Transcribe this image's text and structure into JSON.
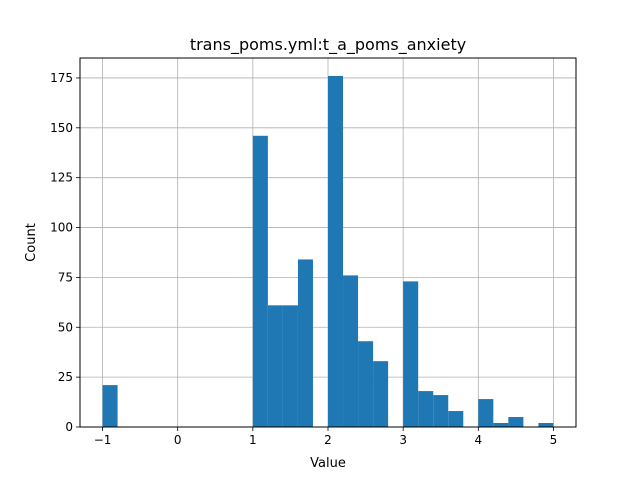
{
  "chart_data": {
    "type": "bar",
    "title": "trans_poms.yml:t_a_poms_anxiety",
    "xlabel": "Value",
    "ylabel": "Count",
    "xlim": [
      -1.3,
      5.3
    ],
    "ylim": [
      0,
      185
    ],
    "xticks": [
      -1,
      0,
      1,
      2,
      3,
      4,
      5
    ],
    "xtick_labels": [
      "−1",
      "0",
      "1",
      "2",
      "3",
      "4",
      "5"
    ],
    "yticks": [
      0,
      25,
      50,
      75,
      100,
      125,
      150,
      175
    ],
    "ytick_labels": [
      "0",
      "25",
      "50",
      "75",
      "100",
      "125",
      "150",
      "175"
    ],
    "grid": true,
    "bar_color": "#1f77b4",
    "bins": [
      {
        "x0": -1.0,
        "x1": -0.8,
        "count": 21
      },
      {
        "x0": 1.0,
        "x1": 1.2,
        "count": 146
      },
      {
        "x0": 1.2,
        "x1": 1.4,
        "count": 61
      },
      {
        "x0": 1.4,
        "x1": 1.6,
        "count": 61
      },
      {
        "x0": 1.6,
        "x1": 1.8,
        "count": 84
      },
      {
        "x0": 2.0,
        "x1": 2.2,
        "count": 176
      },
      {
        "x0": 2.2,
        "x1": 2.4,
        "count": 76
      },
      {
        "x0": 2.4,
        "x1": 2.6,
        "count": 43
      },
      {
        "x0": 2.6,
        "x1": 2.8,
        "count": 33
      },
      {
        "x0": 3.0,
        "x1": 3.2,
        "count": 73
      },
      {
        "x0": 3.2,
        "x1": 3.4,
        "count": 18
      },
      {
        "x0": 3.4,
        "x1": 3.6,
        "count": 16
      },
      {
        "x0": 3.6,
        "x1": 3.8,
        "count": 8
      },
      {
        "x0": 4.0,
        "x1": 4.2,
        "count": 14
      },
      {
        "x0": 4.2,
        "x1": 4.4,
        "count": 2
      },
      {
        "x0": 4.4,
        "x1": 4.6,
        "count": 5
      },
      {
        "x0": 4.8,
        "x1": 5.0,
        "count": 2
      }
    ]
  }
}
